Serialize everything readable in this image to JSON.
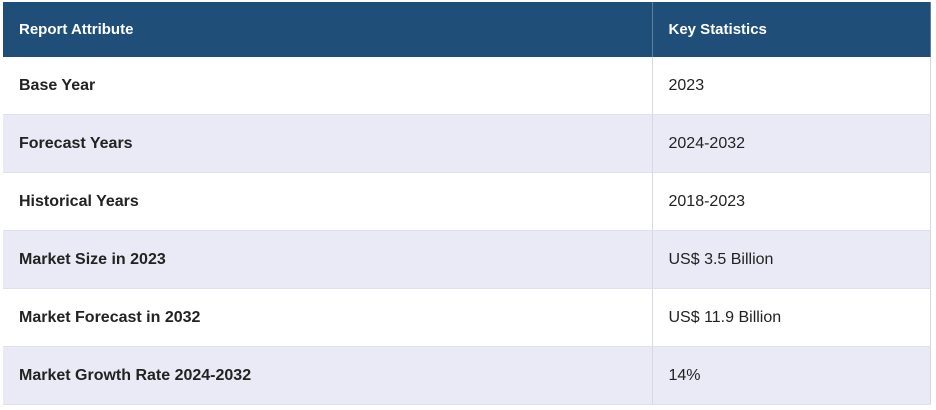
{
  "table": {
    "header": [
      "Report Attribute",
      "Key Statistics"
    ],
    "rows": [
      [
        "Base Year",
        "2023"
      ],
      [
        "Forecast Years",
        "2024-2032"
      ],
      [
        "Historical Years",
        "2018-2023"
      ],
      [
        "Market Size in 2023",
        "US$ 3.5 Billion"
      ],
      [
        "Market Forecast in 2032",
        "US$ 11.9 Billion"
      ],
      [
        "Market Growth Rate 2024-2032",
        "14%"
      ]
    ]
  }
}
